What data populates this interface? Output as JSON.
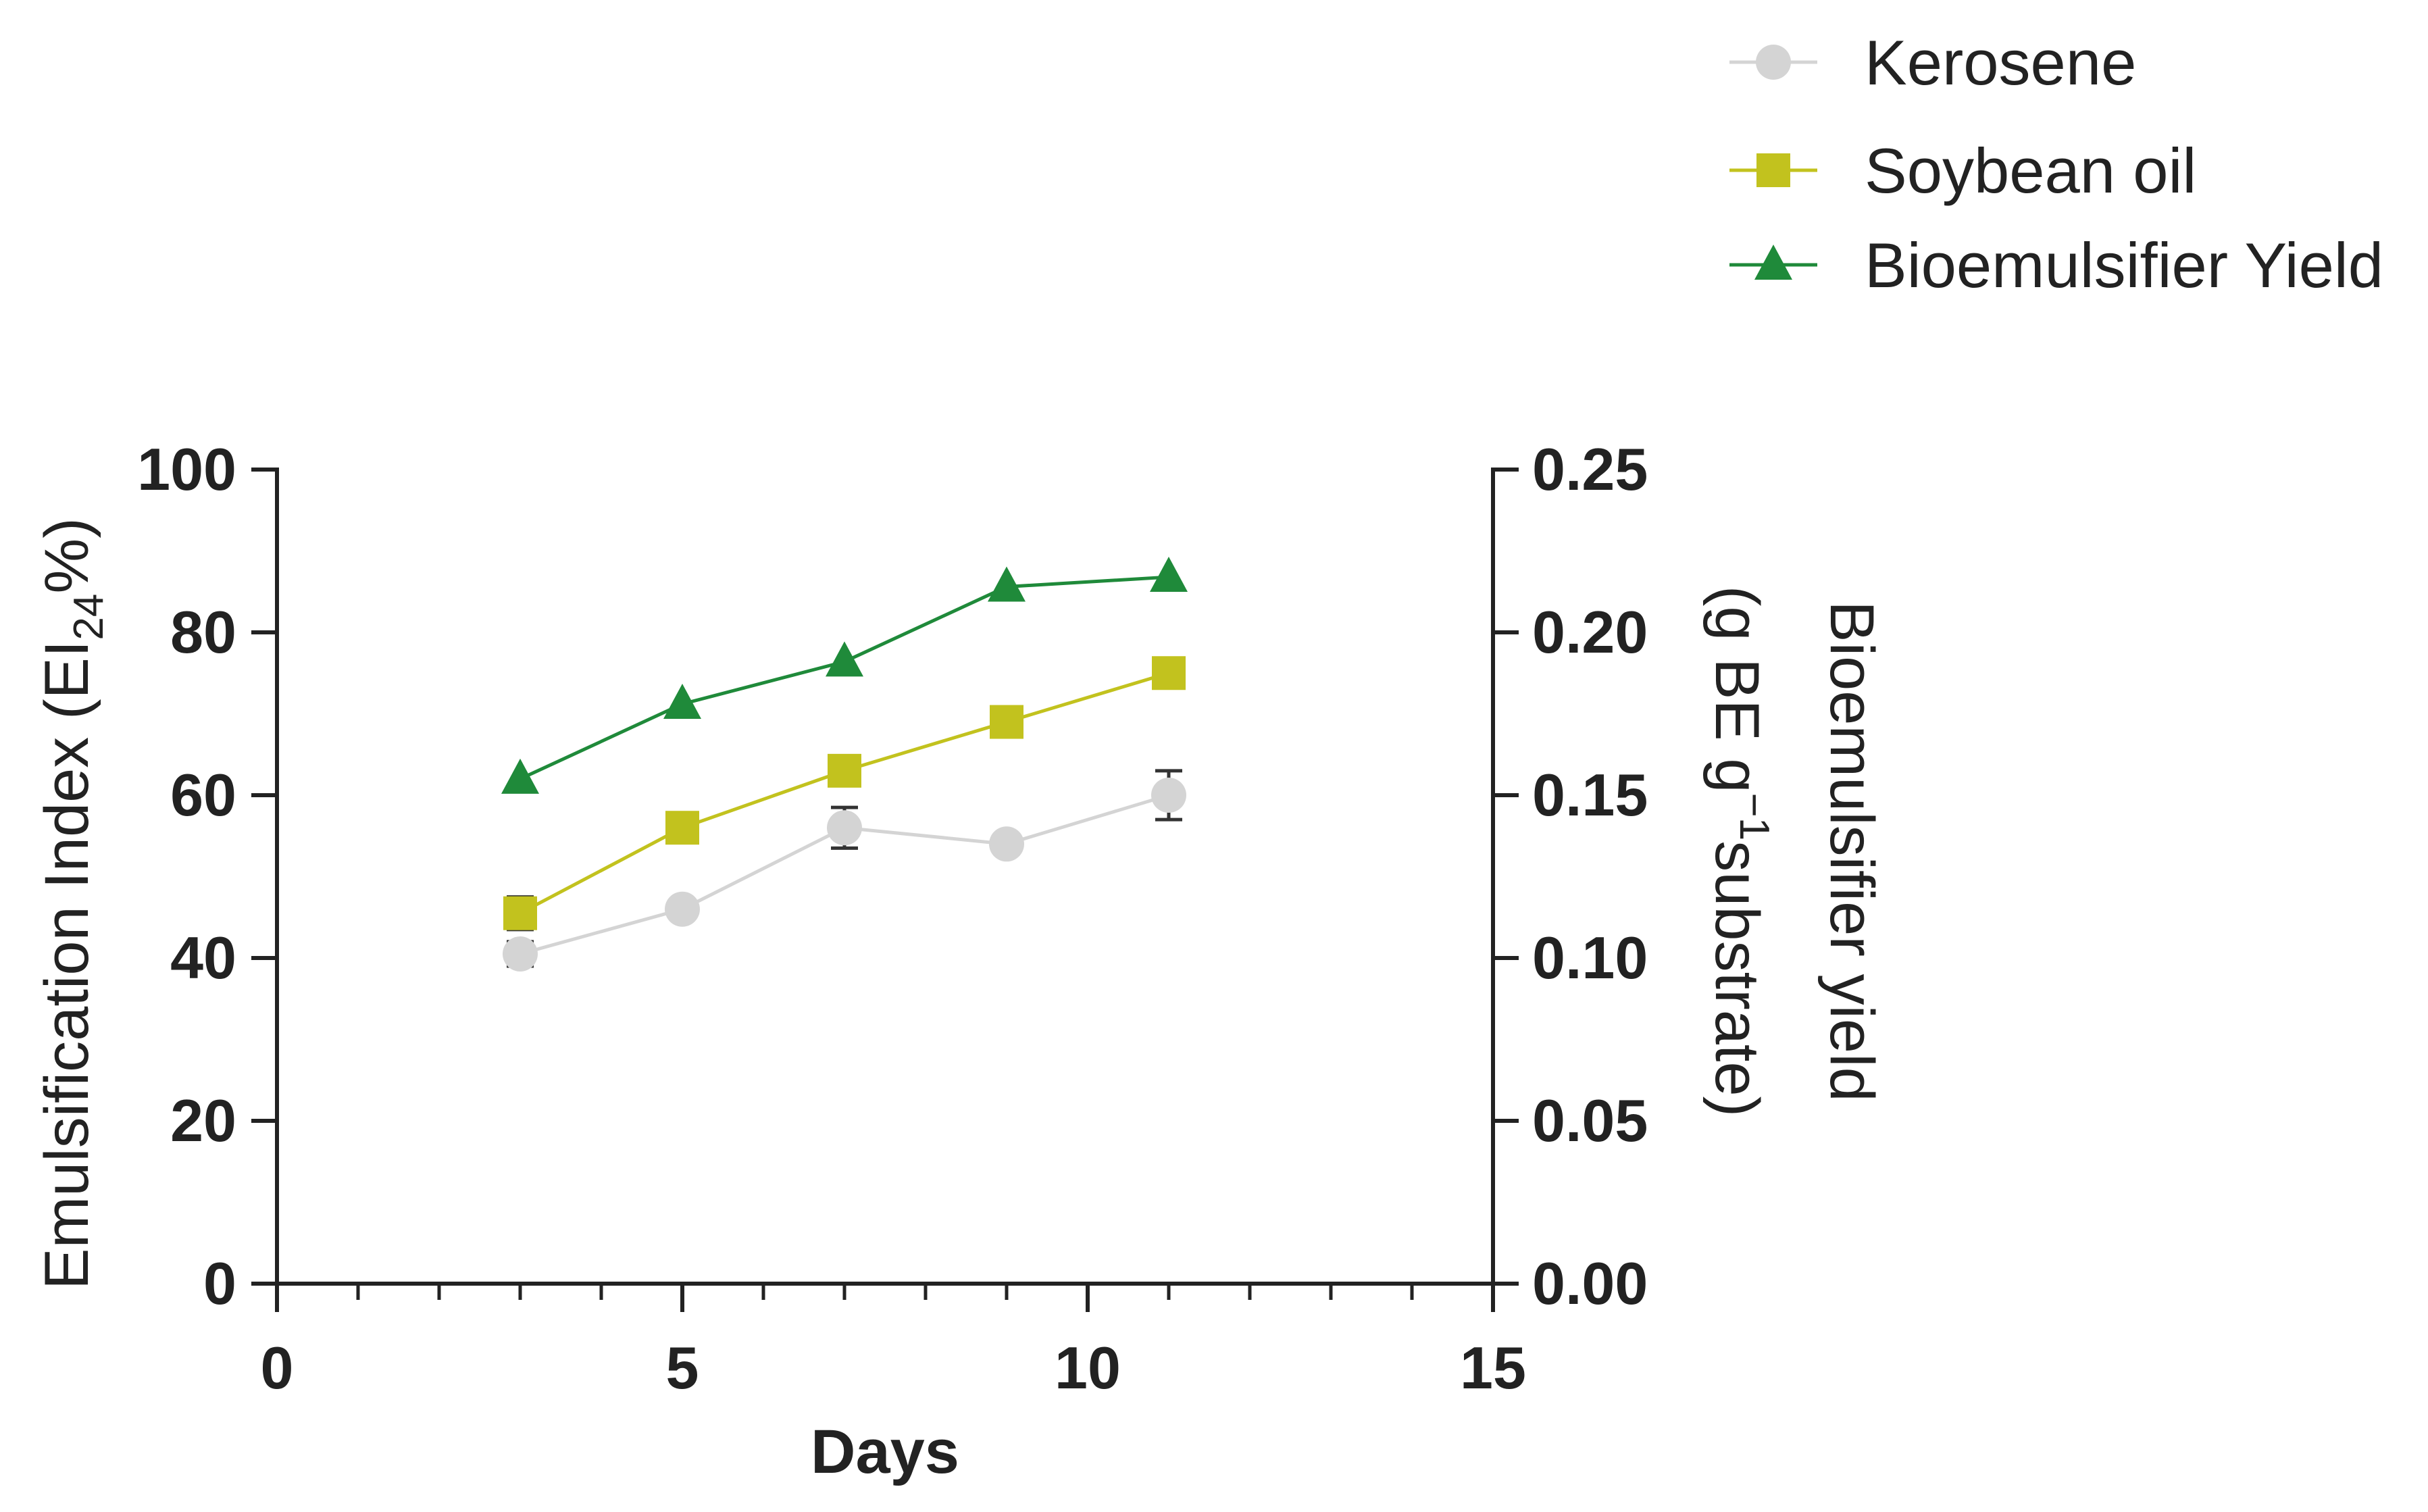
{
  "chart_data": {
    "type": "line",
    "title": "",
    "xlabel": "Days",
    "ylabel": "Emulsification Index (EI24%)",
    "ylabel_parts": {
      "main": "Emulsification Index (EI",
      "sub": "24",
      "end": "%)"
    },
    "y2label_line1": "Bioemulsifier yield",
    "y2label_line2_parts": {
      "start": "(g BE g",
      "sup": "−1",
      "end": "substrate)"
    },
    "xlim": [
      0,
      15
    ],
    "ylim": [
      0,
      100
    ],
    "y2lim": [
      0,
      0.25
    ],
    "x_ticks": [
      "0",
      "5",
      "10",
      "15"
    ],
    "x_tick_values": [
      0,
      5,
      10,
      15
    ],
    "y_ticks": [
      "0",
      "20",
      "40",
      "60",
      "80",
      "100"
    ],
    "y_tick_values": [
      0,
      20,
      40,
      60,
      80,
      100
    ],
    "y2_ticks": [
      "0.00",
      "0.05",
      "0.10",
      "0.15",
      "0.20",
      "0.25"
    ],
    "y2_tick_values": [
      0,
      0.05,
      0.1,
      0.15,
      0.2,
      0.25
    ],
    "legend_position": "top-right",
    "series": [
      {
        "name": "Kerosene",
        "axis": "left",
        "marker": "circle",
        "color": "#d4d4d4",
        "x": [
          3,
          5,
          7,
          9,
          11
        ],
        "values": [
          40.5,
          46,
          56,
          54,
          60
        ],
        "errors": [
          1.5,
          1,
          2.5,
          1,
          3
        ]
      },
      {
        "name": "Soybean oil",
        "axis": "left",
        "marker": "square",
        "color": "#c2c21e",
        "x": [
          3,
          5,
          7,
          9,
          11
        ],
        "values": [
          45.5,
          56,
          63,
          69,
          75
        ],
        "errors": [
          2,
          1,
          1,
          1,
          1
        ]
      },
      {
        "name": "Bioemulsifier Yield",
        "axis": "right",
        "marker": "triangle",
        "color": "#1f8a3a",
        "x": [
          3,
          5,
          7,
          9,
          11
        ],
        "values": [
          0.155,
          0.178,
          0.191,
          0.214,
          0.217
        ],
        "errors": [
          0,
          0,
          0,
          0,
          0
        ]
      }
    ]
  }
}
